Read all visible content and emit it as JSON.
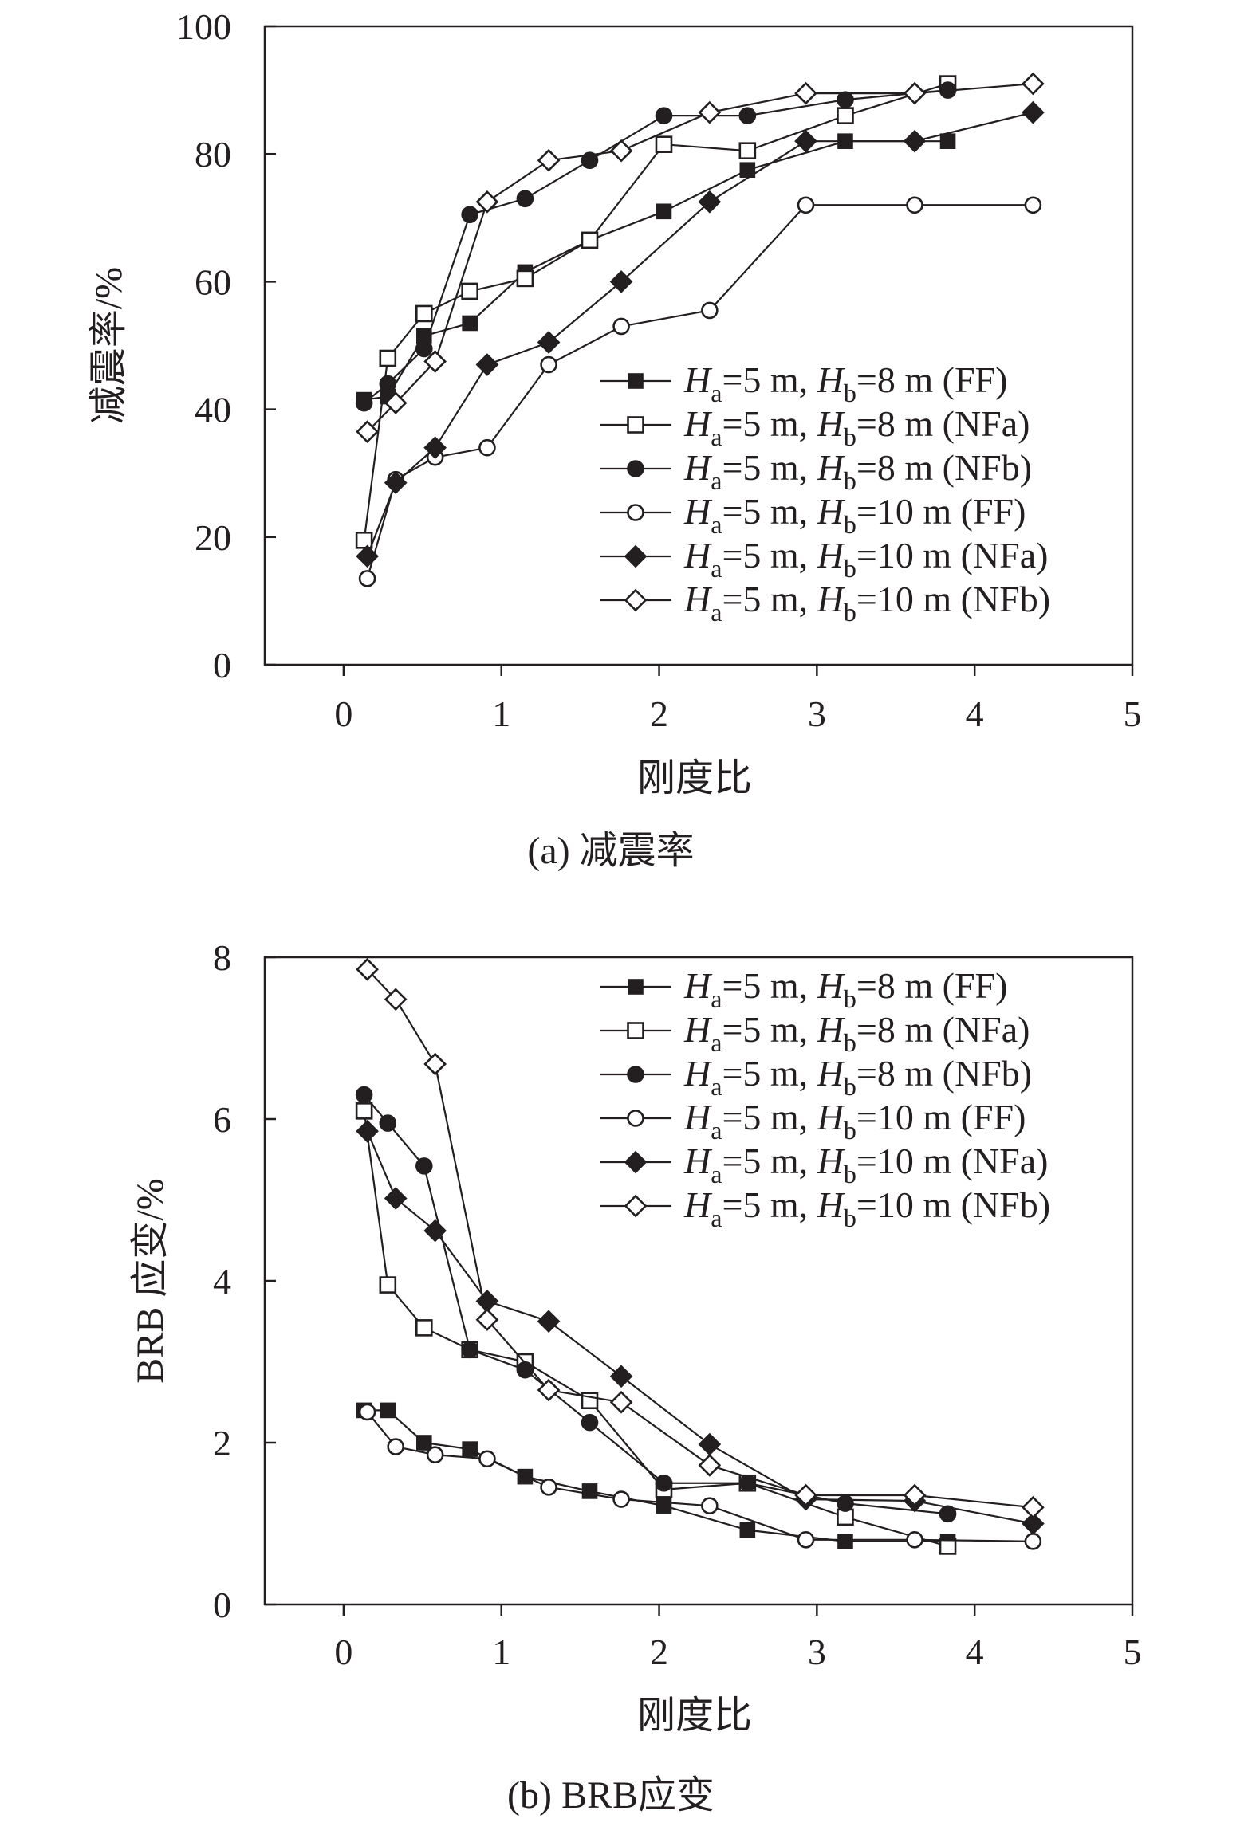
{
  "chart_data": [
    {
      "type": "line",
      "id": "a",
      "title": "",
      "caption": "(a) 减震率",
      "xlabel": "刚度比",
      "ylabel": "减震率/%",
      "xlim": [
        -0.5,
        5
      ],
      "ylim": [
        0,
        100
      ],
      "xticks": [
        0,
        1,
        2,
        3,
        4,
        5
      ],
      "yticks": [
        0,
        20,
        40,
        60,
        80,
        100
      ],
      "legend_position": "bottom-right",
      "series": [
        {
          "name": "Ha=5 m, Hb=8 m (FF)",
          "label": {
            "ha": "=5 m, ",
            "hb": "=8 m (FF)"
          },
          "marker": "square-filled",
          "x": [
            0.13,
            0.28,
            0.51,
            0.8,
            1.15,
            1.56,
            2.03,
            2.56,
            3.18,
            3.83
          ],
          "y": [
            41.5,
            42,
            51.5,
            53.5,
            61.5,
            66.5,
            71,
            77.5,
            82,
            82
          ]
        },
        {
          "name": "Ha=5 m, Hb=8 m (NFa)",
          "label": {
            "ha": "=5 m, ",
            "hb": "=8 m (NFa)"
          },
          "marker": "square-open",
          "x": [
            0.13,
            0.28,
            0.51,
            0.8,
            1.15,
            1.56,
            2.03,
            2.56,
            3.18,
            3.83
          ],
          "y": [
            19.5,
            48,
            55,
            58.5,
            60.5,
            66.5,
            81.5,
            80.5,
            86,
            91
          ]
        },
        {
          "name": "Ha=5 m, Hb=8 m (NFb)",
          "label": {
            "ha": "=5 m, ",
            "hb": "=8 m (NFb)"
          },
          "marker": "circle-filled",
          "x": [
            0.13,
            0.28,
            0.51,
            0.8,
            1.15,
            1.56,
            2.03,
            2.56,
            3.18,
            3.83
          ],
          "y": [
            41,
            44,
            49.5,
            70.5,
            73,
            79,
            86,
            86,
            88.5,
            90
          ]
        },
        {
          "name": "Ha=5 m, Hb=10 m (FF)",
          "label": {
            "ha": "=5 m, ",
            "hb": "=10 m (FF)"
          },
          "marker": "circle-open",
          "x": [
            0.15,
            0.33,
            0.58,
            0.91,
            1.3,
            1.76,
            2.32,
            2.93,
            3.62,
            4.37
          ],
          "y": [
            13.5,
            29,
            32.5,
            34,
            47,
            53,
            55.5,
            72,
            72,
            72
          ]
        },
        {
          "name": "Ha=5 m, Hb=10 m (NFa)",
          "label": {
            "ha": "=5 m, ",
            "hb": "=10 m (NFa)"
          },
          "marker": "diamond-filled",
          "x": [
            0.15,
            0.33,
            0.58,
            0.91,
            1.3,
            1.76,
            2.32,
            2.93,
            3.62,
            4.37
          ],
          "y": [
            17,
            28.5,
            34,
            47,
            50.5,
            60,
            72.5,
            82,
            82,
            86.5
          ]
        },
        {
          "name": "Ha=5 m, Hb=10 m (NFb)",
          "label": {
            "ha": "=5 m, ",
            "hb": "=10 m (NFb)"
          },
          "marker": "diamond-open",
          "x": [
            0.15,
            0.33,
            0.58,
            0.91,
            1.3,
            1.76,
            2.32,
            2.93,
            3.62,
            4.37
          ],
          "y": [
            36.5,
            41,
            47.5,
            72.5,
            79,
            80.5,
            86.5,
            89.5,
            89.5,
            91
          ]
        }
      ]
    },
    {
      "type": "line",
      "id": "b",
      "title": "",
      "caption": "(b) BRB应变",
      "xlabel": "刚度比",
      "ylabel": "BRB 应变/%",
      "xlim": [
        -0.5,
        5
      ],
      "ylim": [
        0,
        8
      ],
      "xticks": [
        0,
        1,
        2,
        3,
        4,
        5
      ],
      "yticks": [
        0,
        2,
        4,
        6,
        8
      ],
      "legend_position": "top-right",
      "series": [
        {
          "name": "Ha=5 m, Hb=8 m (FF)",
          "label": {
            "ha": "=5 m, ",
            "hb": "=8 m (FF)"
          },
          "marker": "square-filled",
          "x": [
            0.13,
            0.28,
            0.51,
            0.8,
            1.15,
            1.56,
            2.03,
            2.56,
            3.18,
            3.83
          ],
          "y": [
            2.4,
            2.4,
            2.0,
            1.92,
            1.58,
            1.4,
            1.22,
            0.92,
            0.78,
            0.78
          ]
        },
        {
          "name": "Ha=5 m, Hb=8 m (NFa)",
          "label": {
            "ha": "=5 m, ",
            "hb": "=8 m (NFa)"
          },
          "marker": "square-open",
          "x": [
            0.13,
            0.28,
            0.51,
            0.8,
            1.15,
            1.56,
            2.03,
            2.56,
            3.18,
            3.83
          ],
          "y": [
            6.1,
            3.95,
            3.42,
            3.15,
            3.0,
            2.52,
            1.42,
            1.5,
            1.08,
            0.72
          ]
        },
        {
          "name": "Ha=5 m, Hb=8 m (NFb)",
          "label": {
            "ha": "=5 m, ",
            "hb": "=8 m (NFb)"
          },
          "marker": "circle-filled",
          "x": [
            0.13,
            0.28,
            0.51,
            0.8,
            1.15,
            1.56,
            2.03,
            2.56,
            3.18,
            3.83
          ],
          "y": [
            6.3,
            5.95,
            5.42,
            3.15,
            2.9,
            2.25,
            1.5,
            1.5,
            1.25,
            1.12
          ]
        },
        {
          "name": "Ha=5 m, Hb=10 m (FF)",
          "label": {
            "ha": "=5 m, ",
            "hb": "=10 m (FF)"
          },
          "marker": "circle-open",
          "x": [
            0.15,
            0.33,
            0.58,
            0.91,
            1.3,
            1.76,
            2.32,
            2.93,
            3.62,
            4.37
          ],
          "y": [
            2.38,
            1.95,
            1.85,
            1.8,
            1.45,
            1.3,
            1.22,
            0.8,
            0.8,
            0.78
          ]
        },
        {
          "name": "Ha=5 m, Hb=10 m (NFa)",
          "label": {
            "ha": "=5 m, ",
            "hb": "=10 m (NFa)"
          },
          "marker": "diamond-filled",
          "x": [
            0.15,
            0.33,
            0.58,
            0.91,
            1.3,
            1.76,
            2.32,
            2.93,
            3.62,
            4.37
          ],
          "y": [
            5.85,
            5.02,
            4.62,
            3.75,
            3.5,
            2.82,
            1.98,
            1.3,
            1.28,
            1.0
          ]
        },
        {
          "name": "Ha=5 m, Hb=10 m (NFb)",
          "label": {
            "ha": "=5 m, ",
            "hb": "=10 m (NFb)"
          },
          "marker": "diamond-open",
          "x": [
            0.15,
            0.33,
            0.58,
            0.91,
            1.3,
            1.76,
            2.32,
            2.93,
            3.62,
            4.37
          ],
          "y": [
            7.85,
            7.48,
            6.68,
            3.52,
            2.65,
            2.5,
            1.72,
            1.35,
            1.35,
            1.2
          ]
        }
      ]
    }
  ],
  "legend_symbols": {
    "ha": "H",
    "ha_sub": "a",
    "hb": "H",
    "hb_sub": "b"
  }
}
